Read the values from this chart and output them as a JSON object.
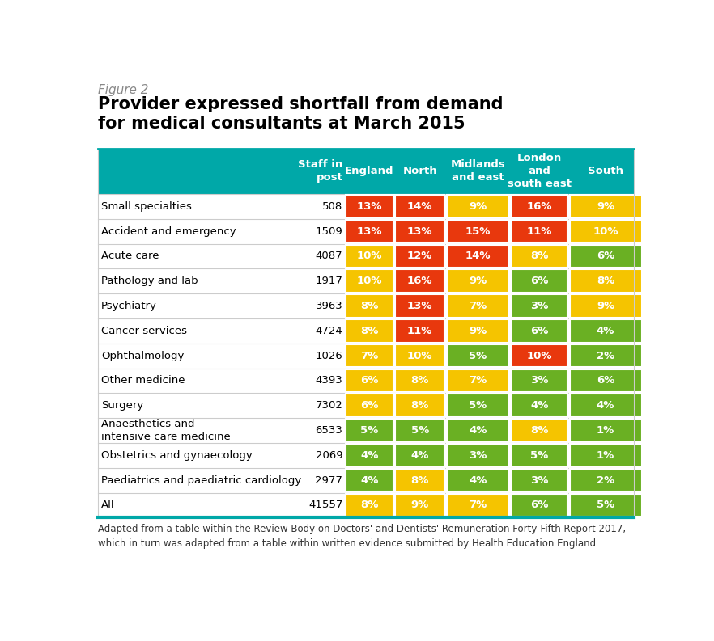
{
  "figure_label": "Figure 2",
  "title": "Provider expressed shortfall from demand\nfor medical consultants at March 2015",
  "col_headers_left": [
    "Staff in\npost"
  ],
  "col_headers_right": [
    "England",
    "North",
    "Midlands\nand east",
    "London\nand\nsouth east",
    "South"
  ],
  "rows": [
    {
      "label": "Small specialties",
      "staff": "508",
      "vals": [
        "13%",
        "14%",
        "9%",
        "16%",
        "9%"
      ]
    },
    {
      "label": "Accident and emergency",
      "staff": "1509",
      "vals": [
        "13%",
        "13%",
        "15%",
        "11%",
        "10%"
      ]
    },
    {
      "label": "Acute care",
      "staff": "4087",
      "vals": [
        "10%",
        "12%",
        "14%",
        "8%",
        "6%"
      ]
    },
    {
      "label": "Pathology and lab",
      "staff": "1917",
      "vals": [
        "10%",
        "16%",
        "9%",
        "6%",
        "8%"
      ]
    },
    {
      "label": "Psychiatry",
      "staff": "3963",
      "vals": [
        "8%",
        "13%",
        "7%",
        "3%",
        "9%"
      ]
    },
    {
      "label": "Cancer services",
      "staff": "4724",
      "vals": [
        "8%",
        "11%",
        "9%",
        "6%",
        "4%"
      ]
    },
    {
      "label": "Ophthalmology",
      "staff": "1026",
      "vals": [
        "7%",
        "10%",
        "5%",
        "10%",
        "2%"
      ]
    },
    {
      "label": "Other medicine",
      "staff": "4393",
      "vals": [
        "6%",
        "8%",
        "7%",
        "3%",
        "6%"
      ]
    },
    {
      "label": "Surgery",
      "staff": "7302",
      "vals": [
        "6%",
        "8%",
        "5%",
        "4%",
        "4%"
      ]
    },
    {
      "label": "Anaesthetics and\nintensive care medicine",
      "staff": "6533",
      "vals": [
        "5%",
        "5%",
        "4%",
        "8%",
        "1%"
      ]
    },
    {
      "label": "Obstetrics and gynaecology",
      "staff": "2069",
      "vals": [
        "4%",
        "4%",
        "3%",
        "5%",
        "1%"
      ]
    },
    {
      "label": "Paediatrics and paediatric cardiology",
      "staff": "2977",
      "vals": [
        "4%",
        "8%",
        "4%",
        "3%",
        "2%"
      ]
    },
    {
      "label": "All",
      "staff": "41557",
      "vals": [
        "8%",
        "9%",
        "7%",
        "6%",
        "5%"
      ]
    }
  ],
  "cell_colors": [
    [
      "#e8380d",
      "#e8380d",
      "#f5c400",
      "#e8380d",
      "#f5c400"
    ],
    [
      "#e8380d",
      "#e8380d",
      "#e8380d",
      "#e8380d",
      "#f5c400"
    ],
    [
      "#f5c400",
      "#e8380d",
      "#e8380d",
      "#f5c400",
      "#6ab023"
    ],
    [
      "#f5c400",
      "#e8380d",
      "#f5c400",
      "#6ab023",
      "#f5c400"
    ],
    [
      "#f5c400",
      "#e8380d",
      "#f5c400",
      "#6ab023",
      "#f5c400"
    ],
    [
      "#f5c400",
      "#e8380d",
      "#f5c400",
      "#6ab023",
      "#6ab023"
    ],
    [
      "#f5c400",
      "#f5c400",
      "#6ab023",
      "#e8380d",
      "#6ab023"
    ],
    [
      "#f5c400",
      "#f5c400",
      "#f5c400",
      "#6ab023",
      "#6ab023"
    ],
    [
      "#f5c400",
      "#f5c400",
      "#6ab023",
      "#6ab023",
      "#6ab023"
    ],
    [
      "#6ab023",
      "#6ab023",
      "#6ab023",
      "#f5c400",
      "#6ab023"
    ],
    [
      "#6ab023",
      "#6ab023",
      "#6ab023",
      "#6ab023",
      "#6ab023"
    ],
    [
      "#6ab023",
      "#f5c400",
      "#6ab023",
      "#6ab023",
      "#6ab023"
    ],
    [
      "#f5c400",
      "#f5c400",
      "#f5c400",
      "#6ab023",
      "#6ab023"
    ]
  ],
  "footer_text": "Adapted from a table within the Review Body on Doctors' and Dentists' Remuneration Forty-Fifth Report 2017,\nwhich in turn was adapted from a table within written evidence submitted by Health Education England.",
  "teal_color": "#00a8a8",
  "teal_line_color": "#00a8a8",
  "label_color": "#888888",
  "title_color": "#000000",
  "header_text_color": "#ffffff",
  "row_text_color": "#000000",
  "cell_text_color": "#ffffff",
  "grid_color": "#cccccc",
  "bg_color": "#ffffff",
  "figure_label_fontsize": 11,
  "title_fontsize": 15,
  "header_fontsize": 9.5,
  "cell_fontsize": 9.5,
  "row_label_fontsize": 9.5,
  "staff_fontsize": 9.5,
  "footer_fontsize": 8.5
}
